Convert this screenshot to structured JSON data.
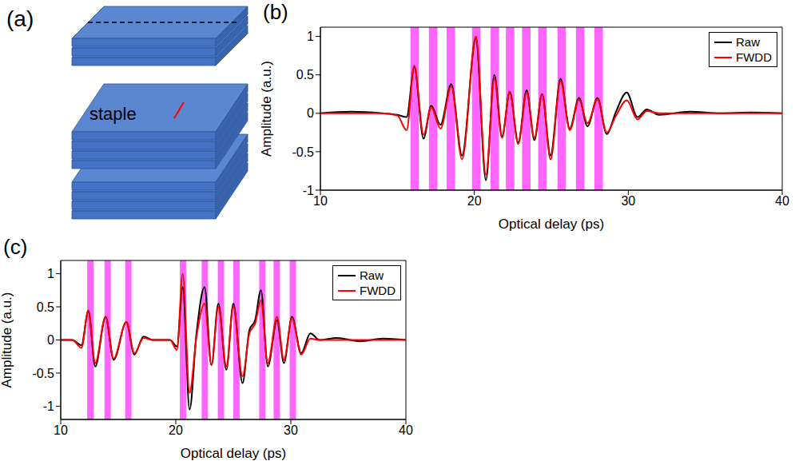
{
  "diagram": {
    "panel": "(a)",
    "label": "staple"
  },
  "chart_data": [
    {
      "panel": "(b)",
      "type": "line",
      "x_label": "Optical delay (ps)",
      "y_label": "Amplitude (a.u.)",
      "x": [
        10,
        12,
        14,
        15,
        15.6,
        16.1,
        16.7,
        17.2,
        17.8,
        18.5,
        19.2,
        20.1,
        20.75,
        21.3,
        21.8,
        22.3,
        22.85,
        23.4,
        23.9,
        24.4,
        24.95,
        25.6,
        26.2,
        26.8,
        27.35,
        28.0,
        28.6,
        29.2,
        29.9,
        30.6,
        31.2,
        32,
        34,
        36,
        38,
        40
      ],
      "series": [
        {
          "name": "Raw",
          "color": "#000000",
          "values": [
            0,
            0.02,
            0,
            -0.02,
            -0.05,
            0.6,
            -0.33,
            0.1,
            -0.15,
            0.38,
            -0.55,
            0.97,
            -0.87,
            0.5,
            -0.3,
            0.28,
            -0.38,
            0.3,
            -0.35,
            0.25,
            -0.55,
            0.45,
            -0.2,
            0.2,
            -0.17,
            0.2,
            -0.27,
            0.02,
            0.27,
            -0.05,
            0.05,
            -0.02,
            0.02,
            0,
            0.01,
            0
          ]
        },
        {
          "name": "FWDD",
          "color": "#ff0000",
          "values": [
            0,
            0,
            0,
            -0.03,
            -0.22,
            0.62,
            -0.28,
            0.08,
            -0.2,
            0.35,
            -0.6,
            1,
            -0.8,
            0.45,
            -0.32,
            0.28,
            -0.4,
            0.27,
            -0.32,
            0.25,
            -0.6,
            0.42,
            -0.22,
            0.18,
            -0.13,
            0.18,
            -0.25,
            -0.03,
            0.17,
            -0.08,
            0.03,
            0,
            0,
            0,
            0,
            0
          ]
        }
      ],
      "bands": [
        [
          15.85,
          16.4
        ],
        [
          17.05,
          17.6
        ],
        [
          18.2,
          18.75
        ],
        [
          19.85,
          20.4
        ],
        [
          21.05,
          21.6
        ],
        [
          22.05,
          22.6
        ],
        [
          23.1,
          23.65
        ],
        [
          24.15,
          24.7
        ],
        [
          25.4,
          25.95
        ],
        [
          26.6,
          27.15
        ],
        [
          27.8,
          28.35
        ]
      ],
      "xlim": [
        10,
        40
      ],
      "xticks": [
        10,
        20,
        30,
        40
      ],
      "ylim": [
        -1,
        1.12
      ],
      "yticks": [
        -1,
        -0.5,
        0,
        0.5,
        1
      ],
      "legend": "upper right",
      "grid": false
    },
    {
      "panel": "(c)",
      "type": "line",
      "x_label": "Optical delay (ps)",
      "y_label": "Amplitude (a.u.)",
      "x": [
        10,
        11,
        11.8,
        12.4,
        13.0,
        13.9,
        14.6,
        15.7,
        16.4,
        17.2,
        18,
        19.5,
        20.1,
        20.6,
        21.2,
        21.8,
        22.5,
        23.1,
        23.7,
        24.4,
        25.0,
        25.8,
        26.4,
        26.9,
        27.4,
        28.0,
        28.8,
        29.4,
        30.1,
        30.9,
        31.7,
        32.5,
        34,
        36,
        38,
        40
      ],
      "series": [
        {
          "name": "Raw",
          "color": "#000000",
          "values": [
            0,
            0,
            -0.08,
            0.43,
            -0.4,
            0.35,
            -0.3,
            0.27,
            -0.22,
            0.05,
            0,
            0,
            -0.1,
            0.8,
            -1.05,
            0.1,
            0.8,
            -0.38,
            0.55,
            -0.45,
            0.55,
            -0.65,
            0.15,
            0.3,
            0.75,
            -0.4,
            0.3,
            -0.35,
            0.35,
            -0.2,
            0.1,
            0,
            0.03,
            -0.02,
            0.02,
            0
          ]
        },
        {
          "name": "FWDD",
          "color": "#ff0000",
          "values": [
            0,
            0,
            -0.12,
            0.45,
            -0.35,
            0.35,
            -0.28,
            0.27,
            -0.2,
            0.03,
            0,
            0,
            -0.15,
            1,
            -0.8,
            0.05,
            0.55,
            -0.38,
            0.5,
            -0.4,
            0.5,
            -0.55,
            0.1,
            0.25,
            0.6,
            -0.35,
            0.35,
            -0.3,
            0.33,
            -0.22,
            0.02,
            0,
            0,
            0,
            0,
            0
          ]
        }
      ],
      "bands": [
        [
          12.3,
          12.85
        ],
        [
          13.8,
          14.35
        ],
        [
          15.6,
          16.15
        ],
        [
          20.35,
          20.9
        ],
        [
          22.25,
          22.8
        ],
        [
          23.65,
          24.2
        ],
        [
          25.0,
          25.55
        ],
        [
          27.25,
          27.8
        ],
        [
          28.5,
          29.05
        ],
        [
          29.9,
          30.45
        ]
      ],
      "xlim": [
        10,
        40
      ],
      "xticks": [
        10,
        20,
        30,
        40
      ],
      "ylim": [
        -1.2,
        1.2
      ],
      "yticks": [
        -1,
        -0.5,
        0,
        0.5,
        1
      ],
      "legend": "upper right",
      "grid": false
    }
  ]
}
